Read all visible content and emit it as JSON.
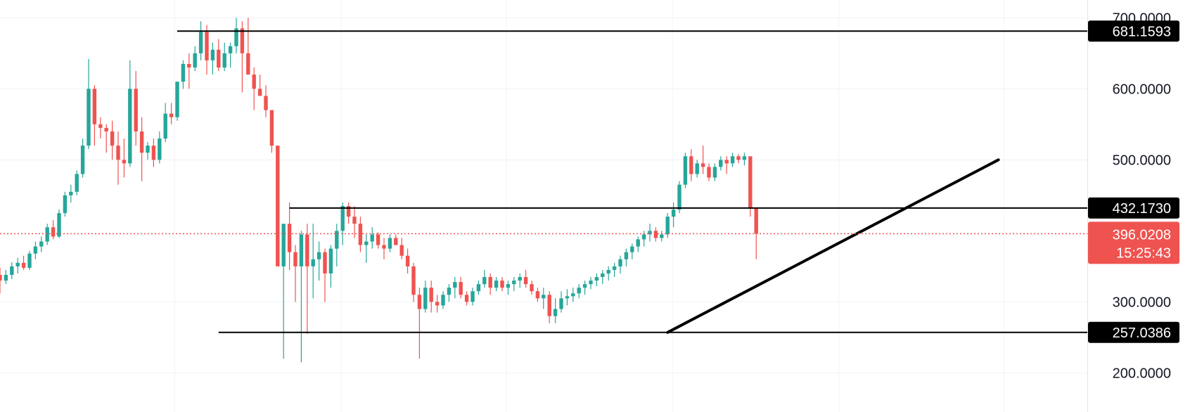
{
  "chart_data": {
    "type": "candlestick",
    "ylim": [
      145,
      725
    ],
    "y_ticks": [
      {
        "value": 700,
        "label": "700.0000"
      },
      {
        "value": 600,
        "label": "600.0000"
      },
      {
        "value": 500,
        "label": "500.0000"
      },
      {
        "value": 300,
        "label": "300.0000"
      },
      {
        "value": 200,
        "label": "200.0000"
      }
    ],
    "grid": true,
    "up_color": "#26a69a",
    "down_color": "#ef5350",
    "horizontal_levels": [
      {
        "value": 681.1593,
        "label": "681.1593",
        "from_bar": 30
      },
      {
        "value": 432.173,
        "label": "432.1730",
        "from_bar": 49
      },
      {
        "value": 257.0386,
        "label": "257.0386",
        "from_bar": 37
      }
    ],
    "trendline": {
      "from_bar": 113,
      "from_value": 257.04,
      "to_bar": 169,
      "to_value": 500
    },
    "last_price": {
      "value": 396.0208,
      "label": "396.0208",
      "countdown": "15:25:43"
    },
    "bars": [
      [
        338,
        348,
        312,
        330
      ],
      [
        330,
        345,
        325,
        338
      ],
      [
        338,
        356,
        332,
        350
      ],
      [
        350,
        362,
        340,
        355
      ],
      [
        355,
        365,
        345,
        348
      ],
      [
        348,
        372,
        345,
        368
      ],
      [
        368,
        385,
        360,
        378
      ],
      [
        378,
        392,
        370,
        385
      ],
      [
        385,
        410,
        380,
        405
      ],
      [
        405,
        415,
        388,
        392
      ],
      [
        392,
        430,
        390,
        425
      ],
      [
        425,
        455,
        420,
        450
      ],
      [
        450,
        465,
        440,
        455
      ],
      [
        455,
        485,
        450,
        480
      ],
      [
        480,
        530,
        475,
        520
      ],
      [
        520,
        642,
        515,
        600
      ],
      [
        600,
        605,
        520,
        550
      ],
      [
        550,
        560,
        530,
        545
      ],
      [
        545,
        550,
        510,
        540
      ],
      [
        540,
        555,
        500,
        520
      ],
      [
        520,
        540,
        465,
        500
      ],
      [
        500,
        530,
        475,
        495
      ],
      [
        495,
        640,
        490,
        600
      ],
      [
        600,
        625,
        520,
        540
      ],
      [
        540,
        560,
        470,
        510
      ],
      [
        510,
        525,
        500,
        520
      ],
      [
        520,
        530,
        490,
        500
      ],
      [
        500,
        540,
        495,
        530
      ],
      [
        530,
        580,
        525,
        565
      ],
      [
        565,
        580,
        550,
        560
      ],
      [
        560,
        600,
        555,
        610
      ],
      [
        610,
        640,
        600,
        635
      ],
      [
        635,
        650,
        600,
        630
      ],
      [
        630,
        660,
        625,
        650
      ],
      [
        650,
        695,
        640,
        680
      ],
      [
        680,
        690,
        620,
        640
      ],
      [
        640,
        665,
        620,
        655
      ],
      [
        655,
        670,
        625,
        630
      ],
      [
        630,
        665,
        625,
        650
      ],
      [
        650,
        665,
        630,
        660
      ],
      [
        660,
        700,
        650,
        685
      ],
      [
        685,
        695,
        595,
        650
      ],
      [
        650,
        700,
        630,
        620
      ],
      [
        620,
        630,
        570,
        600
      ],
      [
        600,
        620,
        595,
        590
      ],
      [
        590,
        605,
        560,
        570
      ],
      [
        570,
        560,
        510,
        520
      ],
      [
        520,
        515,
        430,
        350
      ],
      [
        350,
        380,
        220,
        410
      ],
      [
        410,
        440,
        345,
        370
      ],
      [
        370,
        380,
        300,
        350
      ],
      [
        350,
        400,
        215,
        395
      ],
      [
        395,
        410,
        255,
        350
      ],
      [
        350,
        410,
        305,
        360
      ],
      [
        360,
        385,
        330,
        370
      ],
      [
        370,
        375,
        300,
        340
      ],
      [
        340,
        380,
        320,
        375
      ],
      [
        375,
        410,
        350,
        400
      ],
      [
        400,
        440,
        380,
        435
      ],
      [
        435,
        440,
        410,
        420
      ],
      [
        420,
        435,
        390,
        410
      ],
      [
        410,
        420,
        370,
        380
      ],
      [
        380,
        395,
        355,
        385
      ],
      [
        385,
        405,
        375,
        395
      ],
      [
        395,
        398,
        375,
        380
      ],
      [
        380,
        390,
        360,
        375
      ],
      [
        375,
        395,
        370,
        390
      ],
      [
        390,
        395,
        380,
        380
      ],
      [
        380,
        390,
        360,
        365
      ],
      [
        365,
        375,
        340,
        350
      ],
      [
        350,
        355,
        300,
        310
      ],
      [
        310,
        320,
        220,
        290
      ],
      [
        290,
        330,
        285,
        320
      ],
      [
        320,
        330,
        285,
        300
      ],
      [
        300,
        310,
        285,
        295
      ],
      [
        295,
        315,
        290,
        310
      ],
      [
        310,
        325,
        300,
        320
      ],
      [
        320,
        335,
        305,
        328
      ],
      [
        328,
        335,
        305,
        310
      ],
      [
        310,
        315,
        295,
        300
      ],
      [
        300,
        320,
        295,
        315
      ],
      [
        315,
        330,
        310,
        325
      ],
      [
        325,
        345,
        320,
        335
      ],
      [
        335,
        340,
        310,
        320
      ],
      [
        320,
        335,
        315,
        330
      ],
      [
        330,
        335,
        315,
        320
      ],
      [
        320,
        330,
        310,
        325
      ],
      [
        325,
        335,
        315,
        330
      ],
      [
        330,
        340,
        320,
        335
      ],
      [
        335,
        345,
        320,
        325
      ],
      [
        325,
        330,
        310,
        315
      ],
      [
        315,
        320,
        300,
        305
      ],
      [
        305,
        320,
        290,
        310
      ],
      [
        310,
        315,
        270,
        280
      ],
      [
        280,
        305,
        270,
        290
      ],
      [
        290,
        315,
        285,
        305
      ],
      [
        305,
        318,
        295,
        308
      ],
      [
        308,
        320,
        300,
        312
      ],
      [
        312,
        325,
        305,
        320
      ],
      [
        320,
        330,
        310,
        325
      ],
      [
        325,
        335,
        318,
        330
      ],
      [
        330,
        340,
        322,
        335
      ],
      [
        335,
        345,
        325,
        340
      ],
      [
        340,
        350,
        330,
        345
      ],
      [
        345,
        355,
        335,
        350
      ],
      [
        350,
        365,
        340,
        360
      ],
      [
        360,
        375,
        350,
        370
      ],
      [
        370,
        382,
        360,
        378
      ],
      [
        378,
        392,
        370,
        388
      ],
      [
        388,
        400,
        378,
        395
      ],
      [
        395,
        410,
        385,
        400
      ],
      [
        400,
        405,
        385,
        390
      ],
      [
        390,
        400,
        385,
        395
      ],
      [
        395,
        425,
        390,
        420
      ],
      [
        420,
        440,
        405,
        430
      ],
      [
        430,
        470,
        425,
        465
      ],
      [
        465,
        510,
        460,
        505
      ],
      [
        505,
        515,
        470,
        480
      ],
      [
        480,
        500,
        475,
        495
      ],
      [
        495,
        520,
        480,
        490
      ],
      [
        490,
        495,
        470,
        475
      ],
      [
        475,
        495,
        470,
        490
      ],
      [
        490,
        505,
        485,
        500
      ],
      [
        500,
        505,
        480,
        495
      ],
      [
        495,
        510,
        490,
        505
      ],
      [
        505,
        508,
        495,
        500
      ],
      [
        500,
        510,
        492,
        505
      ],
      [
        505,
        500,
        420,
        432
      ],
      [
        432,
        430,
        360,
        396
      ]
    ]
  }
}
